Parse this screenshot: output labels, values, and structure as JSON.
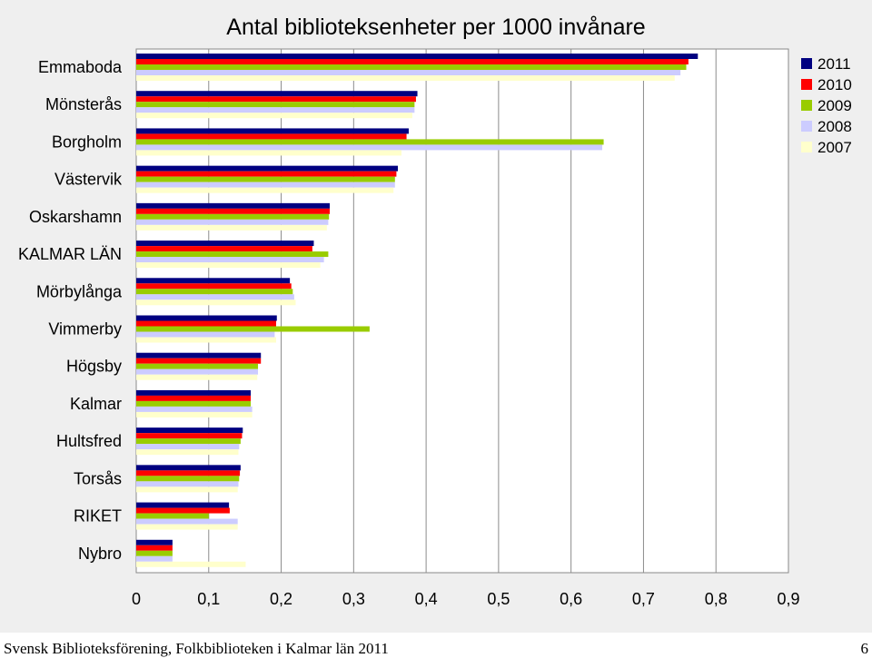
{
  "chart_data": {
    "type": "bar",
    "orientation": "horizontal",
    "title": "Antal biblioteksenheter per 1000 invånare",
    "categories": [
      "Emmaboda",
      "Mönsterås",
      "Borgholm",
      "Västervik",
      "Oskarshamn",
      "KALMAR LÄN",
      "Mörbylånga",
      "Vimmerby",
      "Högsby",
      "Kalmar",
      "Hultsfred",
      "Torsås",
      "RIKET",
      "Nybro"
    ],
    "series": [
      {
        "name": "2011",
        "color": "#000080",
        "values": [
          0.775,
          0.388,
          0.376,
          0.361,
          0.267,
          0.245,
          0.212,
          0.194,
          0.172,
          0.158,
          0.147,
          0.144,
          0.128,
          0.05
        ]
      },
      {
        "name": "2010",
        "color": "#ff0000",
        "values": [
          0.762,
          0.386,
          0.373,
          0.359,
          0.267,
          0.243,
          0.214,
          0.193,
          0.172,
          0.158,
          0.146,
          0.143,
          0.129,
          0.05
        ]
      },
      {
        "name": "2009",
        "color": "#99cc00",
        "values": [
          0.759,
          0.384,
          0.645,
          0.357,
          0.266,
          0.265,
          0.216,
          0.322,
          0.168,
          0.158,
          0.144,
          0.142,
          0.1,
          0.05
        ]
      },
      {
        "name": "2008",
        "color": "#ccccff",
        "values": [
          0.751,
          0.384,
          0.643,
          0.357,
          0.265,
          0.259,
          0.218,
          0.191,
          0.168,
          0.16,
          0.142,
          0.141,
          0.14,
          0.05
        ]
      },
      {
        "name": "2007",
        "color": "#ffffcc",
        "values": [
          0.743,
          0.381,
          0.366,
          0.355,
          0.263,
          0.254,
          0.22,
          0.193,
          0.167,
          0.16,
          0.141,
          0.14,
          0.14,
          0.151
        ]
      }
    ],
    "xlim": [
      0,
      0.9
    ],
    "xticks": [
      "0",
      "0,1",
      "0,2",
      "0,3",
      "0,4",
      "0,5",
      "0,6",
      "0,7",
      "0,8",
      "0,9"
    ],
    "grid": "vertical",
    "legend_position": "top-right"
  },
  "footer": {
    "left": "Svensk Biblioteksförening, Folkbiblioteken i Kalmar län 2011",
    "page_number": "6"
  }
}
